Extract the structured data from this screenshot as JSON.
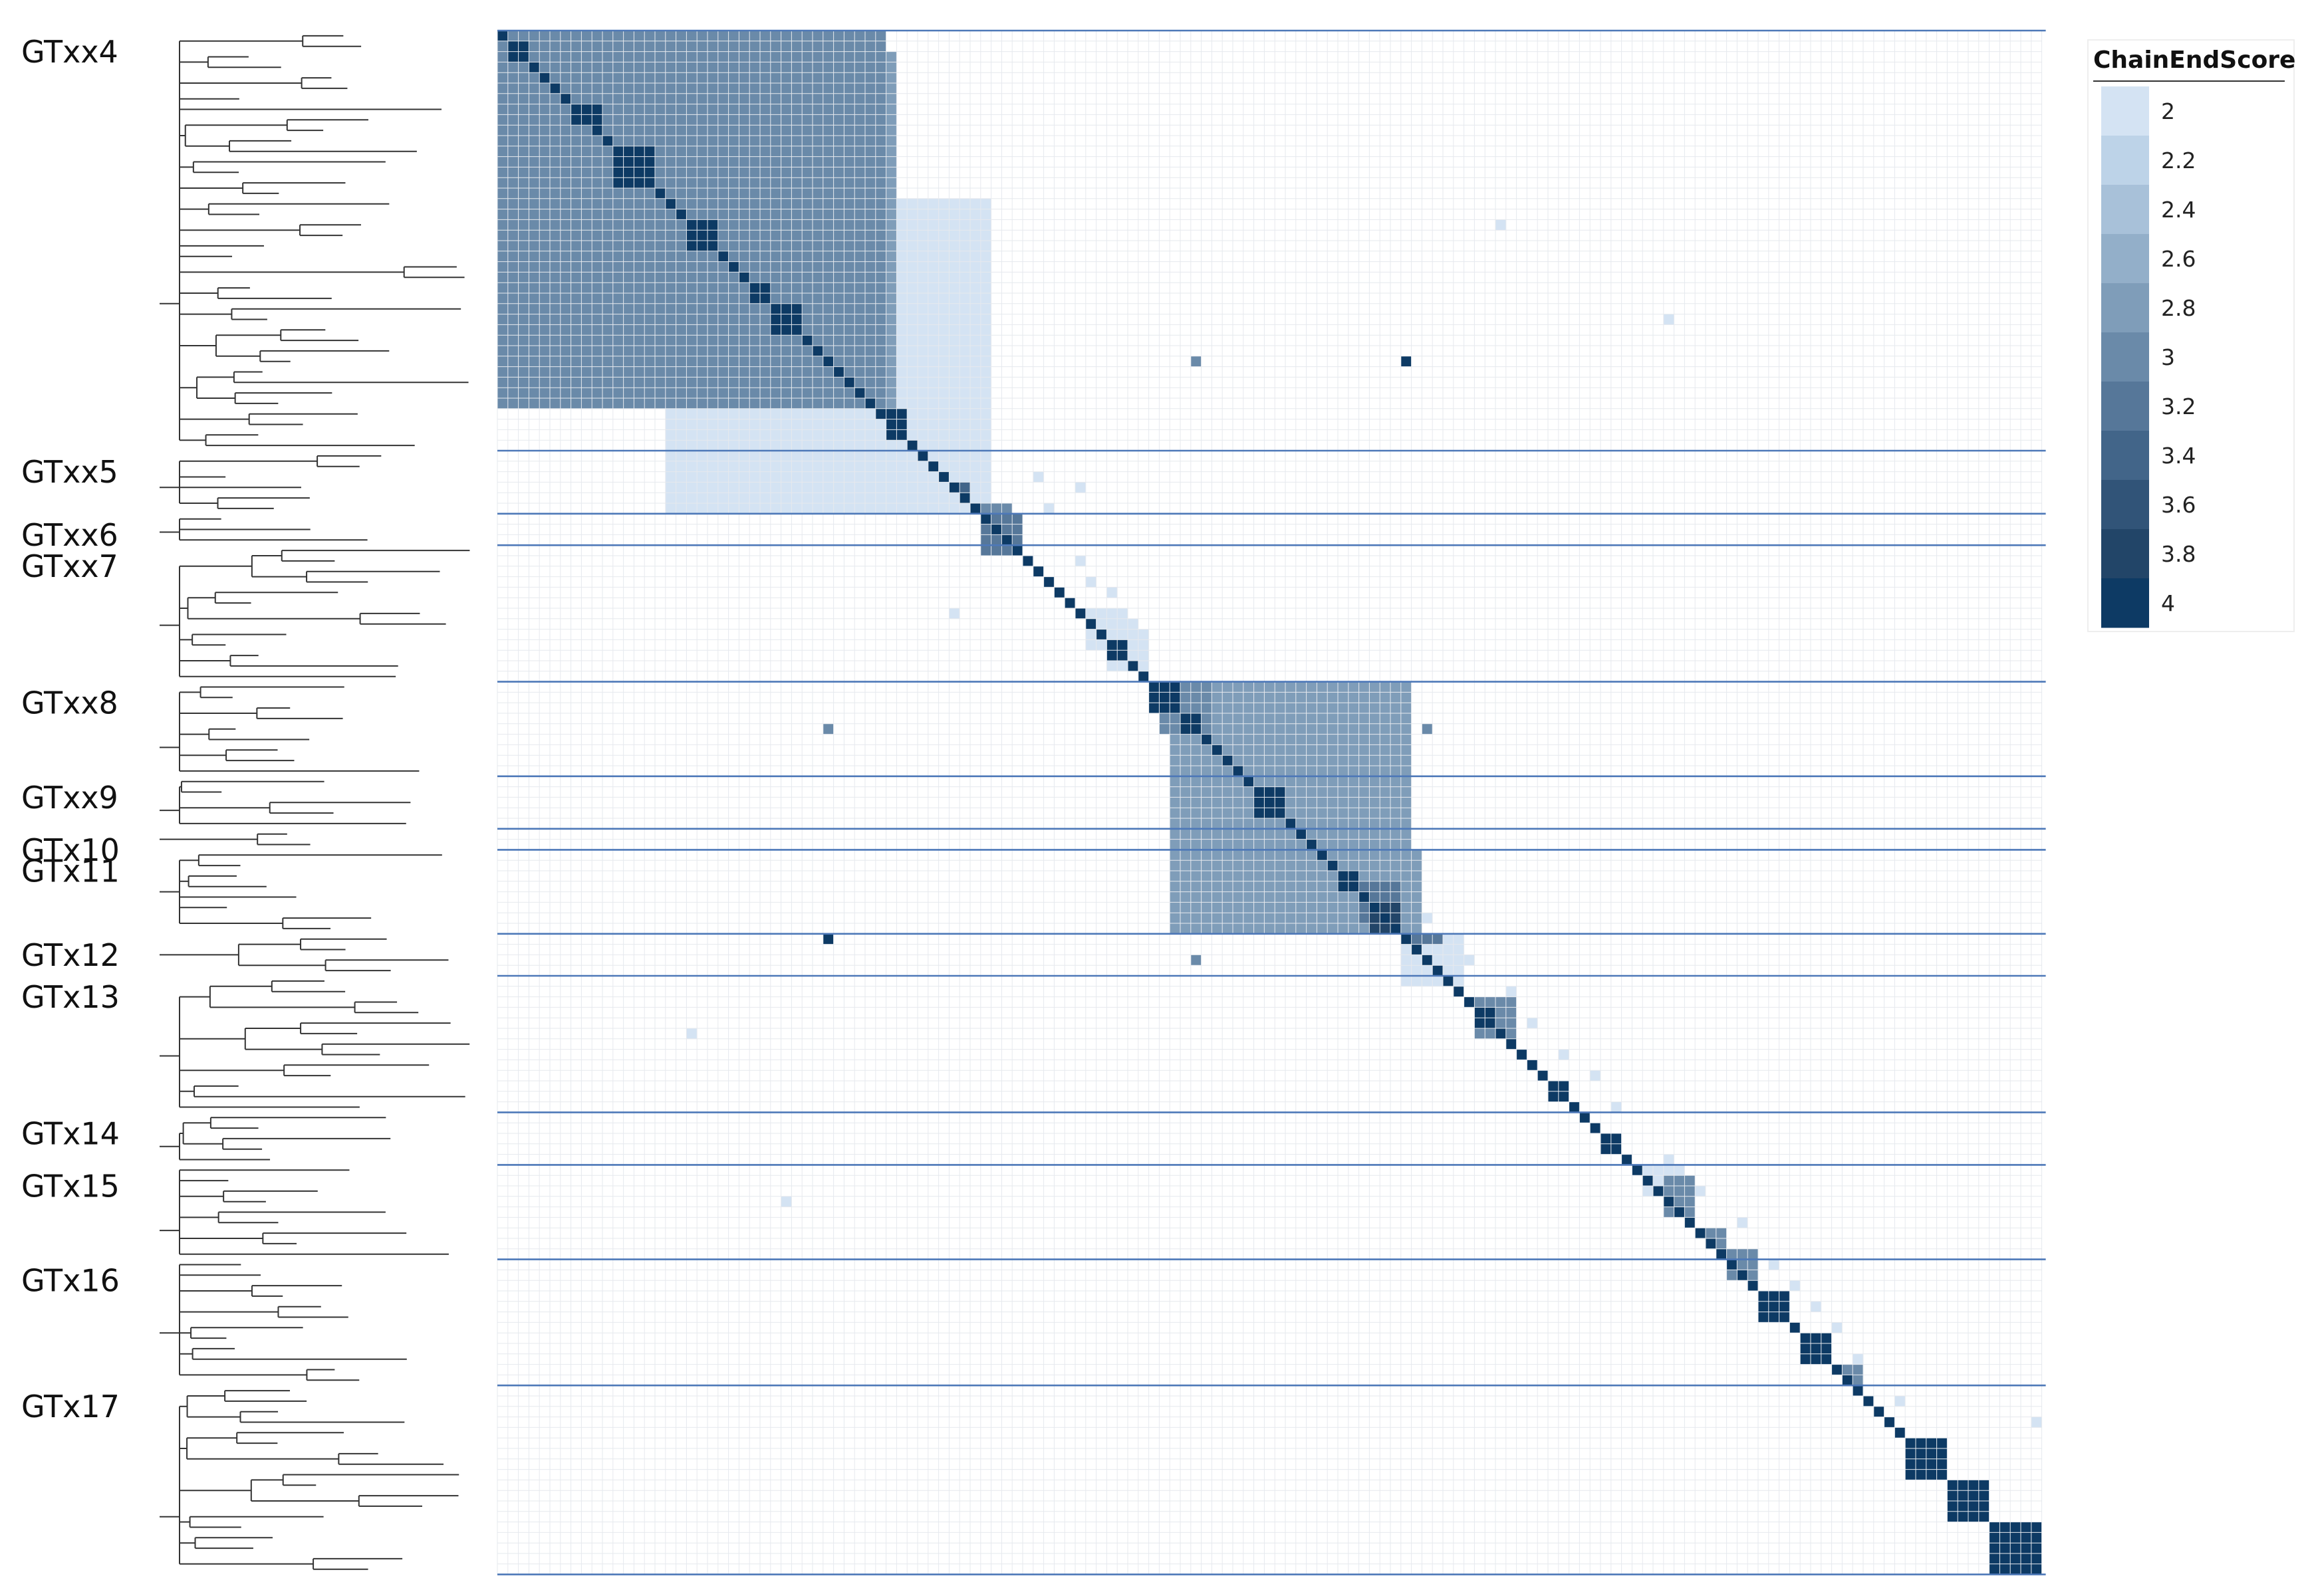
{
  "chart_data": {
    "type": "heatmap",
    "title": "",
    "n": 147,
    "scale": {
      "colors": [
        "#d4e3f3",
        "#bdd3e8",
        "#a8c1d9",
        "#93afc9",
        "#7f9db9",
        "#6a8aa9",
        "#567799",
        "#426589",
        "#315478",
        "#224568",
        "#0d3a64"
      ]
    },
    "groups": [
      {
        "label": "GTxx4",
        "start": 0,
        "end": 40
      },
      {
        "label": "GTxx5",
        "start": 40,
        "end": 46
      },
      {
        "label": "GTxx6",
        "start": 46,
        "end": 49
      },
      {
        "label": "GTxx7",
        "start": 49,
        "end": 62
      },
      {
        "label": "GTxx8",
        "start": 62,
        "end": 71
      },
      {
        "label": "GTxx9",
        "start": 71,
        "end": 76
      },
      {
        "label": "GTx10",
        "start": 76,
        "end": 78
      },
      {
        "label": "GTx11",
        "start": 78,
        "end": 86
      },
      {
        "label": "GTx12",
        "start": 86,
        "end": 90
      },
      {
        "label": "GTx13",
        "start": 90,
        "end": 103
      },
      {
        "label": "GTx14",
        "start": 103,
        "end": 108
      },
      {
        "label": "GTx15",
        "start": 108,
        "end": 117
      },
      {
        "label": "GTx16",
        "start": 117,
        "end": 129
      },
      {
        "label": "GTx17",
        "start": 129,
        "end": 147
      }
    ],
    "blocks": [
      [
        11,
        11,
        14,
        14,
        4.0
      ],
      [
        26,
        26,
        28,
        28,
        4.0
      ],
      [
        58,
        58,
        59,
        59,
        4.0
      ],
      [
        62,
        62,
        64,
        64,
        4.0
      ],
      [
        65,
        65,
        66,
        66,
        4.0
      ],
      [
        72,
        72,
        74,
        74,
        4.0
      ],
      [
        80,
        80,
        81,
        81,
        4.0
      ],
      [
        83,
        83,
        85,
        85,
        3.8
      ],
      [
        93,
        93,
        94,
        94,
        4.0
      ],
      [
        100,
        100,
        101,
        101,
        4.0
      ],
      [
        105,
        105,
        106,
        106,
        4.0
      ],
      [
        120,
        120,
        122,
        122,
        4.0
      ],
      [
        124,
        124,
        126,
        126,
        4.0
      ],
      [
        134,
        134,
        137,
        137,
        4.0
      ],
      [
        138,
        138,
        141,
        141,
        4.0
      ],
      [
        142,
        142,
        146,
        146,
        4.0
      ],
      [
        1,
        1,
        2,
        2,
        4.0
      ],
      [
        24,
        24,
        25,
        25,
        4.0
      ],
      [
        18,
        18,
        20,
        20,
        4.0
      ],
      [
        2,
        3,
        4,
        5,
        3.0
      ],
      [
        4,
        5,
        2,
        3,
        3.0
      ],
      [
        2,
        2,
        33,
        33,
        2.0
      ],
      [
        1,
        3,
        32,
        35,
        2.0
      ],
      [
        32,
        35,
        1,
        3,
        2.0
      ],
      [
        2,
        3,
        35,
        37,
        2.8
      ],
      [
        35,
        37,
        2,
        3,
        2.8
      ],
      [
        36,
        37,
        38,
        38,
        4.0
      ],
      [
        38,
        38,
        36,
        37,
        4.0
      ],
      [
        0,
        1,
        12,
        12,
        2.0
      ],
      [
        8,
        9,
        7,
        7,
        4.0
      ],
      [
        7,
        7,
        8,
        9,
        4.0
      ],
      [
        8,
        8,
        14,
        16,
        3.0
      ],
      [
        16,
        16,
        45,
        46,
        2.0
      ],
      [
        0,
        0,
        35,
        36,
        3.0
      ],
      [
        3,
        3,
        5,
        7,
        2.0
      ],
      [
        12,
        13,
        7,
        7,
        2.8
      ],
      [
        7,
        7,
        12,
        13,
        2.8
      ],
      [
        13,
        13,
        8,
        8,
        3.0
      ],
      [
        17,
        17,
        13,
        13,
        3.0
      ],
      [
        22,
        22,
        20,
        21,
        3.0
      ],
      [
        20,
        21,
        22,
        22,
        3.0
      ],
      [
        40,
        41,
        41,
        43,
        2.0
      ],
      [
        41,
        43,
        40,
        41,
        2.0
      ],
      [
        43,
        44,
        43,
        44,
        3.4
      ],
      [
        42,
        43,
        39,
        40,
        2.0
      ],
      [
        47,
        48,
        45,
        46,
        3.0
      ],
      [
        45,
        46,
        47,
        48,
        3.0
      ],
      [
        46,
        46,
        49,
        49,
        3.2
      ],
      [
        55,
        56,
        58,
        59,
        2.0
      ],
      [
        58,
        59,
        55,
        56,
        2.0
      ],
      [
        57,
        58,
        60,
        61,
        2.0
      ],
      [
        60,
        61,
        57,
        58,
        2.0
      ],
      [
        62,
        63,
        66,
        67,
        3.0
      ],
      [
        66,
        67,
        62,
        63,
        3.0
      ],
      [
        62,
        64,
        78,
        82,
        2.0
      ],
      [
        78,
        82,
        62,
        64,
        2.0
      ],
      [
        62,
        64,
        85,
        86,
        2.8
      ],
      [
        85,
        86,
        62,
        64,
        2.8
      ],
      [
        78,
        80,
        85,
        87,
        2.8
      ],
      [
        85,
        87,
        78,
        80,
        2.8
      ],
      [
        81,
        82,
        84,
        85,
        3.2
      ],
      [
        86,
        87,
        86,
        89,
        3.2
      ],
      [
        86,
        86,
        90,
        91,
        2.0
      ],
      [
        90,
        91,
        86,
        86,
        2.0
      ],
      [
        90,
        92,
        86,
        87,
        2.0
      ],
      [
        92,
        93,
        95,
        96,
        3.0
      ],
      [
        95,
        96,
        92,
        93,
        3.0
      ],
      [
        108,
        109,
        110,
        112,
        2.0
      ],
      [
        110,
        112,
        108,
        109,
        2.0
      ],
      [
        109,
        111,
        112,
        113,
        3.0
      ],
      [
        112,
        113,
        109,
        111,
        3.0
      ],
      [
        115,
        116,
        114,
        115,
        3.0
      ],
      [
        114,
        115,
        115,
        116,
        3.0
      ],
      [
        118,
        119,
        116,
        117,
        3.0
      ],
      [
        116,
        117,
        118,
        119,
        3.0
      ],
      [
        127,
        128,
        128,
        129,
        3.0
      ],
      [
        128,
        129,
        127,
        128,
        3.0
      ],
      [
        132,
        146,
        132,
        146,
        2.0
      ]
    ],
    "scatter": [
      [
        5,
        20,
        3.0
      ],
      [
        10,
        16,
        3.0
      ],
      [
        14,
        19,
        3.0
      ],
      [
        14,
        20,
        2.0
      ],
      [
        19,
        21,
        2.0
      ],
      [
        23,
        22,
        2.0
      ],
      [
        27,
        29,
        2.0
      ],
      [
        28,
        33,
        2.0
      ],
      [
        31,
        36,
        2.0
      ],
      [
        34,
        38,
        2.0
      ],
      [
        37,
        42,
        2.0
      ],
      [
        39,
        44,
        2.0
      ],
      [
        40,
        46,
        2.0
      ],
      [
        42,
        51,
        2.0
      ],
      [
        45,
        52,
        2.0
      ],
      [
        50,
        55,
        2.0
      ],
      [
        52,
        56,
        2.0
      ],
      [
        53,
        58,
        2.0
      ],
      [
        56,
        60,
        2.0
      ],
      [
        59,
        61,
        2.0
      ],
      [
        65,
        69,
        2.0
      ],
      [
        70,
        74,
        2.0
      ],
      [
        75,
        79,
        2.0
      ],
      [
        77,
        81,
        2.0
      ],
      [
        81,
        84,
        2.0
      ],
      [
        84,
        88,
        2.0
      ],
      [
        88,
        92,
        2.0
      ],
      [
        91,
        96,
        2.0
      ],
      [
        94,
        98,
        2.0
      ],
      [
        97,
        101,
        2.0
      ],
      [
        99,
        104,
        2.0
      ],
      [
        102,
        106,
        2.0
      ],
      [
        107,
        111,
        2.0
      ],
      [
        110,
        114,
        2.0
      ],
      [
        113,
        118,
        2.0
      ],
      [
        117,
        121,
        2.0
      ],
      [
        119,
        123,
        2.0
      ],
      [
        121,
        125,
        2.0
      ],
      [
        123,
        127,
        2.0
      ],
      [
        126,
        129,
        2.0
      ],
      [
        130,
        133,
        2.0
      ],
      [
        31,
        66,
        3.0
      ],
      [
        31,
        86,
        4.0
      ],
      [
        66,
        31,
        3.0
      ],
      [
        86,
        31,
        4.0
      ],
      [
        88,
        66,
        3.0
      ],
      [
        66,
        88,
        3.0
      ],
      [
        18,
        95,
        2.0
      ],
      [
        95,
        18,
        2.0
      ],
      [
        55,
        43,
        2.0
      ],
      [
        43,
        55,
        2.0
      ],
      [
        27,
        111,
        2.0
      ],
      [
        111,
        27,
        2.0
      ]
    ]
  }
}
